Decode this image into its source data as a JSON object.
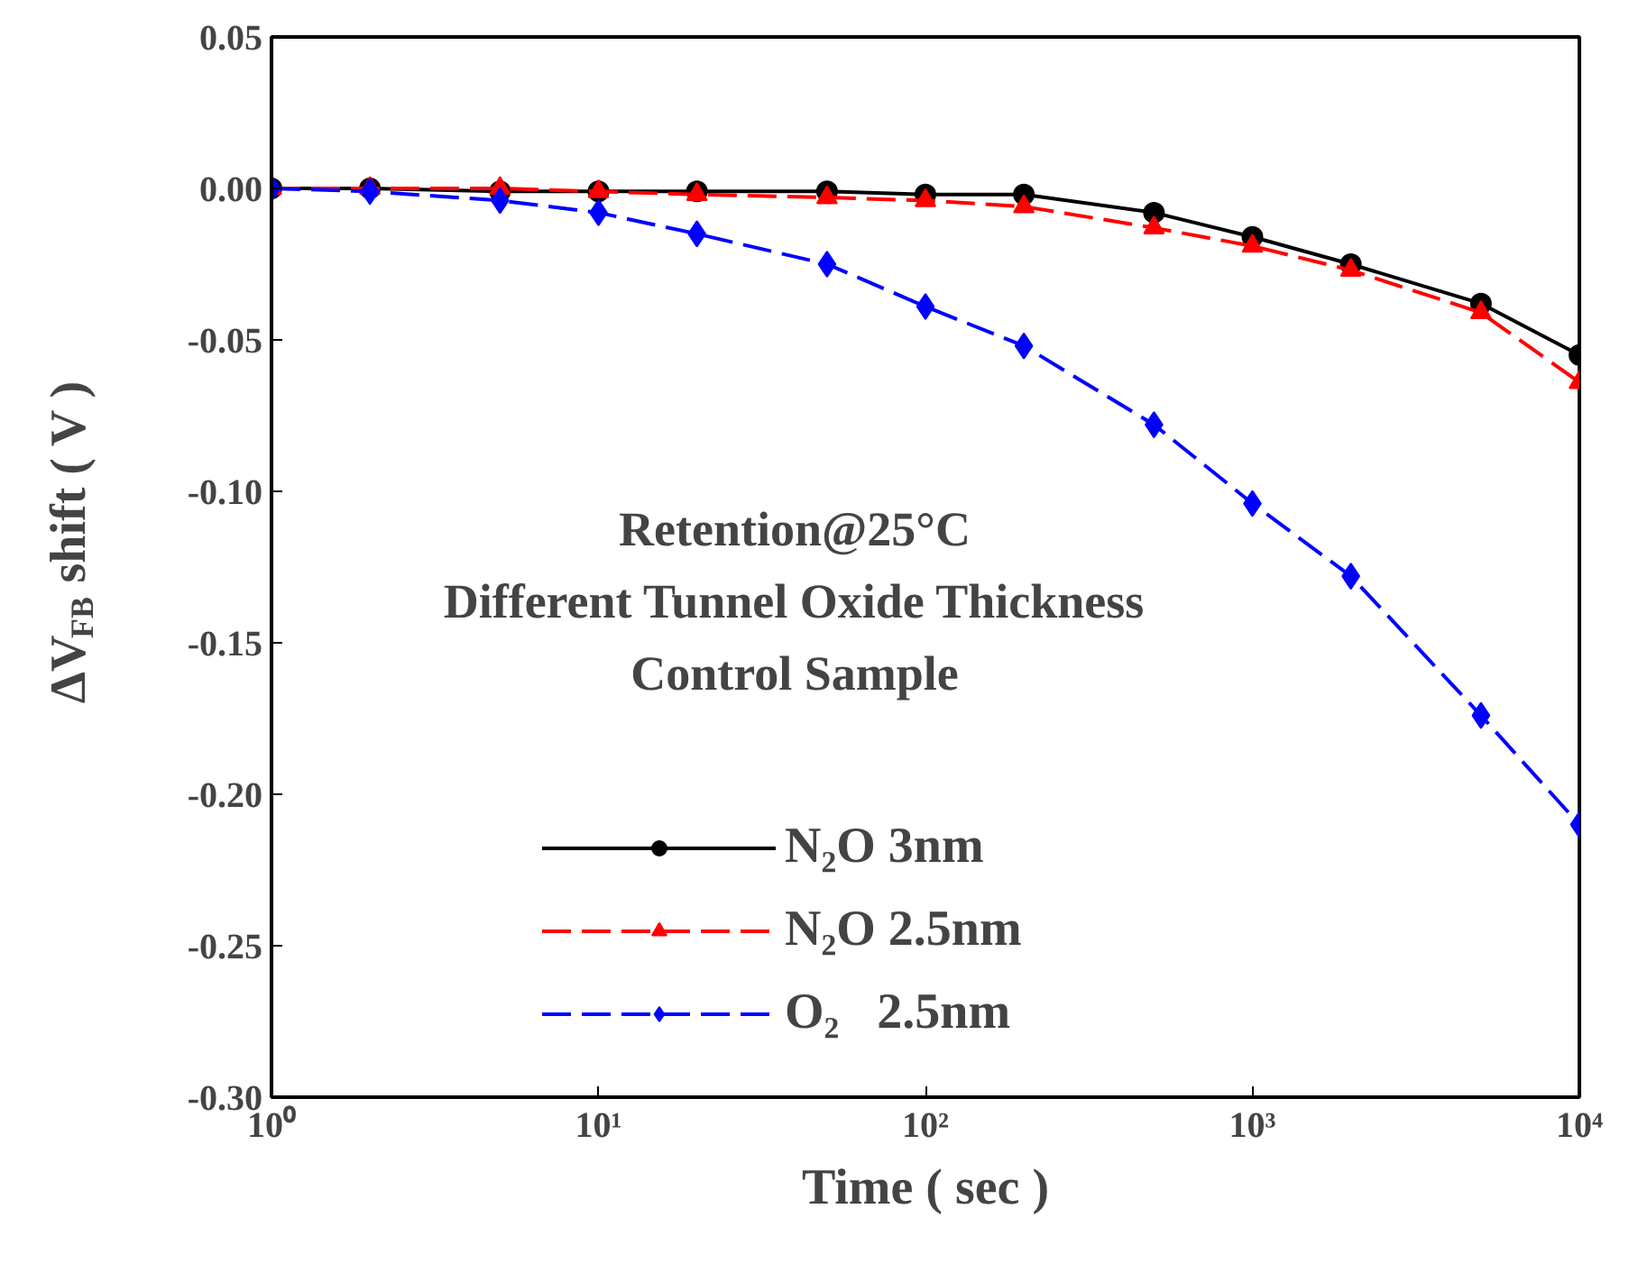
{
  "chart_data": {
    "type": "line",
    "xlabel": "Time ( sec )",
    "ylabel": "ΔV$_{FB}$ shift ( V )",
    "annotations": [
      "Retention@25°C",
      "Different Tunnel Oxide Thickness",
      "Control Sample"
    ],
    "x": [
      1,
      2,
      5,
      10,
      20,
      50,
      100,
      200,
      500,
      1000,
      2000,
      5000,
      10000
    ],
    "series": [
      {
        "name": "N₂O 3nm",
        "color": "#000000",
        "marker": "circle",
        "line_style": "solid",
        "values": [
          0,
          0,
          -0.001,
          -0.001,
          -0.001,
          -0.001,
          -0.002,
          -0.002,
          -0.008,
          -0.016,
          -0.025,
          -0.038,
          -0.055
        ]
      },
      {
        "name": "N₂O 2.5nm",
        "color": "#ff0000",
        "marker": "triangle",
        "line_style": "dashed",
        "values": [
          0,
          0,
          0,
          -0.001,
          -0.002,
          -0.003,
          -0.004,
          -0.006,
          -0.013,
          -0.019,
          -0.027,
          -0.041,
          -0.064
        ]
      },
      {
        "name": "O₂   2.5nm",
        "color": "#0000ff",
        "marker": "diamond",
        "line_style": "dashed",
        "values": [
          0,
          -0.001,
          -0.004,
          -0.008,
          -0.015,
          -0.025,
          -0.039,
          -0.052,
          -0.078,
          -0.104,
          -0.128,
          -0.174,
          -0.21
        ]
      }
    ],
    "log": "x",
    "xlim": [
      1,
      10000
    ],
    "xticks": [
      {
        "value": 1,
        "label": "10⁰"
      },
      {
        "value": 10,
        "label": "10¹"
      },
      {
        "value": 100,
        "label": "10²"
      },
      {
        "value": 1000,
        "label": "10³"
      },
      {
        "value": 10000,
        "label": "10⁴"
      }
    ],
    "ylim": [
      -0.3,
      0.05
    ],
    "yticks": [
      {
        "value": -0.3,
        "label": "-0.30"
      },
      {
        "value": -0.25,
        "label": "-0.25"
      },
      {
        "value": -0.2,
        "label": "-0.20"
      },
      {
        "value": -0.15,
        "label": "-0.15"
      },
      {
        "value": -0.1,
        "label": "-0.10"
      },
      {
        "value": -0.05,
        "label": "-0.05"
      },
      {
        "value": 0,
        "label": "0.00"
      },
      {
        "value": 0.05,
        "label": "0.05"
      }
    ],
    "grid": false,
    "legend": "bottom"
  }
}
